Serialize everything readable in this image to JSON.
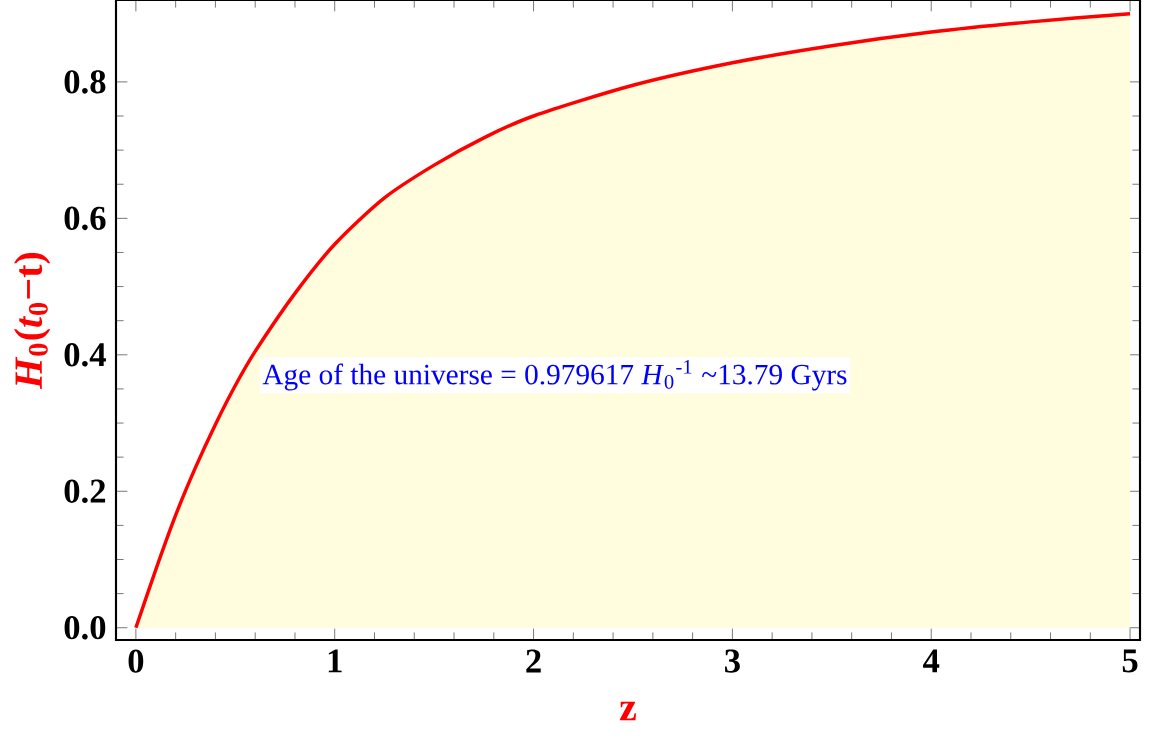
{
  "chart_data": {
    "type": "area",
    "xlabel": "z",
    "ylabel": "*H*$_{0}$(*t*$_{0}$−t)",
    "x": [
      0,
      0.1,
      0.2,
      0.3,
      0.4,
      0.5,
      0.6,
      0.8,
      1,
      1.25,
      1.5,
      1.75,
      2,
      2.5,
      3,
      3.5,
      4,
      4.5,
      5
    ],
    "series": [
      {
        "color": "#ff0000",
        "values": [
          0,
          0.085,
          0.165,
          0.235,
          0.298,
          0.355,
          0.405,
          0.49,
          0.562,
          0.63,
          0.678,
          0.718,
          0.75,
          0.795,
          0.828,
          0.853,
          0.873,
          0.888,
          0.9
        ]
      }
    ],
    "xlim": [
      -0.1,
      5.05
    ],
    "ylim": [
      -0.018,
      0.92
    ],
    "xticks": [
      0,
      1,
      2,
      3,
      4,
      5
    ],
    "yticks": [
      {
        "value": 0,
        "label": "0.0"
      },
      {
        "value": 0.2,
        "label": "0.2"
      },
      {
        "value": 0.4,
        "label": "0.4"
      },
      {
        "value": 0.6,
        "label": "0.6"
      },
      {
        "value": 0.8,
        "label": "0.8"
      }
    ],
    "annotations": [
      "Age of the universe = 0.979617 *H*$_{0}$$^{-1}$ ~13.79 Gyrs"
    ],
    "grid": false
  }
}
